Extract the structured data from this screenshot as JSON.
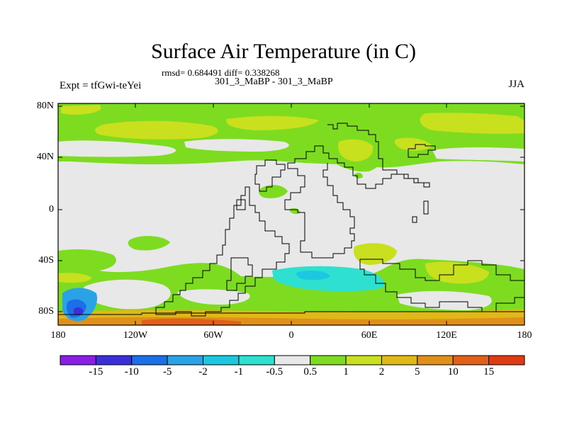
{
  "title": "Surface Air Temperature (in C)",
  "stats": "rmsd= 0.684491 diff= 0.338268",
  "subtitle": "301_3_MaBP - 301_3_MaBP",
  "left_label": "Expt = tfGwi-teYei",
  "right_label": "JJA",
  "y_ticks": [
    "80N",
    "40N",
    "0",
    "40S",
    "80S"
  ],
  "x_ticks": [
    "180",
    "120W",
    "60W",
    "0",
    "60E",
    "120E",
    "180"
  ],
  "colorbar": {
    "colors": [
      "#8a1de6",
      "#3b2fd9",
      "#1c6fe6",
      "#2aa3e6",
      "#1cc8e0",
      "#2de0cf",
      "#e8e8e8",
      "#7ddc1f",
      "#c8e01e",
      "#e0b818",
      "#e0901a",
      "#e0601a",
      "#e03a14"
    ],
    "labels": [
      "-15",
      "-10",
      "-5",
      "-2",
      "-1",
      "-0.5",
      "0.5",
      "1",
      "2",
      "5",
      "10",
      "15"
    ]
  }
}
